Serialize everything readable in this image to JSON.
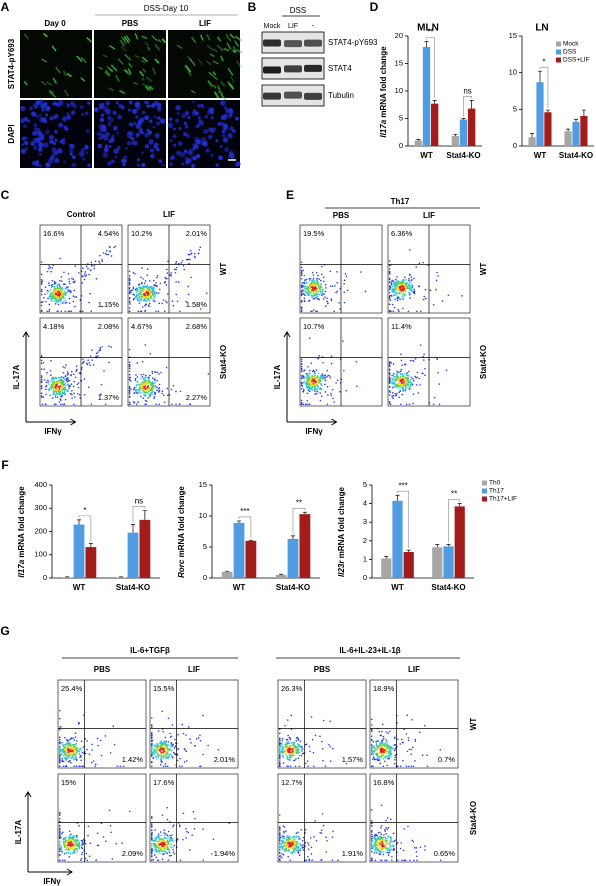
{
  "A": {
    "label": "A",
    "group_header": "DSS-Day 10",
    "columns": [
      "Day 0",
      "PBS",
      "LIF"
    ],
    "rows": [
      "STAT4-pY693",
      "DAPI"
    ]
  },
  "B": {
    "label": "B",
    "group_header": "DSS",
    "lanes": [
      "Mock",
      "LIF",
      "-"
    ],
    "blots": [
      "STAT4-pY693",
      "STAT4",
      "Tubulin"
    ]
  },
  "C": {
    "label": "C",
    "columns": [
      "Control",
      "LIF"
    ],
    "rows": [
      "WT",
      "Stat4-KO"
    ],
    "y_axis": "IL-17A",
    "x_axis": "IFNγ",
    "plots": [
      [
        {
          "tl": "16.6%",
          "tr": "4.54%",
          "br": "1.15%"
        },
        {
          "tl": "10.2%",
          "tr": "2.01%",
          "br": "1.58%"
        }
      ],
      [
        {
          "tl": "4.18%",
          "tr": "2.08%",
          "br": "1.37%"
        },
        {
          "tl": "4.67%",
          "tr": "2.68%",
          "br": "2.27%"
        }
      ]
    ]
  },
  "D": {
    "label": "D",
    "ylabel_gene": "Il17a",
    "ylabel_rest": " mRNA fold change",
    "categories": [
      "WT",
      "Stat4-KO"
    ],
    "series": [
      {
        "name": "Mock",
        "color": "#a6a6a6"
      },
      {
        "name": "DSS",
        "color": "#4f9de0"
      },
      {
        "name": "DSS+LIF",
        "color": "#a31c1c"
      }
    ],
    "charts": [
      {
        "type": "bar",
        "title": "MLN",
        "ylim": [
          0,
          20
        ],
        "yticks": [
          0,
          5,
          10,
          15,
          20
        ],
        "values": [
          [
            1,
            1.8
          ],
          [
            18,
            4.8
          ],
          [
            7.7,
            6.8
          ]
        ],
        "errors": [
          [
            0.2,
            0.3
          ],
          [
            1,
            0.2
          ],
          [
            0.6,
            1.5
          ]
        ],
        "annotations": [
          "**",
          "ns"
        ]
      },
      {
        "type": "bar",
        "title": "LN",
        "ylim": [
          0,
          15
        ],
        "yticks": [
          0,
          5,
          10,
          15
        ],
        "values": [
          [
            1.2,
            2
          ],
          [
            8.7,
            3.3
          ],
          [
            4.6,
            4.1
          ]
        ],
        "errors": [
          [
            0.5,
            0.3
          ],
          [
            1.5,
            0.3
          ],
          [
            0.3,
            0.8
          ]
        ],
        "annotations": [
          "*",
          null
        ]
      }
    ]
  },
  "E": {
    "label": "E",
    "group_header": "Th17",
    "columns": [
      "PBS",
      "LIF"
    ],
    "rows": [
      "WT",
      "Stat4-KO"
    ],
    "y_axis": "IL-17A",
    "x_axis": "IFNγ",
    "plots": [
      [
        {
          "tl": "19.5%"
        },
        {
          "tl": "6.36%"
        }
      ],
      [
        {
          "tl": "10.7%"
        },
        {
          "tl": "11.4%"
        }
      ]
    ]
  },
  "F": {
    "label": "F",
    "categories": [
      "WT",
      "Stat4-KO"
    ],
    "series": [
      {
        "name": "Th0",
        "color": "#a6a6a6"
      },
      {
        "name": "Th17",
        "color": "#4f9de0"
      },
      {
        "name": "Th17+LIF",
        "color": "#a31c1c"
      }
    ],
    "charts": [
      {
        "type": "bar",
        "ylabel_gene": "Il17a",
        "ylabel_rest": " mRNA fold change",
        "ylim": [
          0,
          400
        ],
        "yticks": [
          0,
          100,
          200,
          300,
          400
        ],
        "values": [
          [
            3,
            3
          ],
          [
            230,
            195
          ],
          [
            133,
            250
          ]
        ],
        "errors": [
          [
            2,
            2
          ],
          [
            20,
            35
          ],
          [
            15,
            40
          ]
        ],
        "annotations": [
          "*",
          "ns"
        ]
      },
      {
        "type": "bar",
        "ylabel_gene": "Rorc",
        "ylabel_rest": " mRNA fold change",
        "ylim": [
          0,
          15
        ],
        "yticks": [
          0,
          5,
          10,
          15
        ],
        "values": [
          [
            1,
            0.5
          ],
          [
            8.9,
            6.3
          ],
          [
            6,
            10.3
          ]
        ],
        "errors": [
          [
            0.1,
            0.1
          ],
          [
            0.3,
            0.5
          ],
          [
            0.1,
            0.3
          ]
        ],
        "annotations": [
          "***",
          "**"
        ]
      },
      {
        "type": "bar",
        "ylabel_gene": "Il23r",
        "ylabel_rest": " mRNA fold change",
        "ylim": [
          0,
          5
        ],
        "yticks": [
          0,
          1,
          2,
          3,
          4,
          5
        ],
        "values": [
          [
            1.05,
            1.65
          ],
          [
            4.15,
            1.7
          ],
          [
            1.4,
            3.85
          ]
        ],
        "errors": [
          [
            0.1,
            0.15
          ],
          [
            0.3,
            0.1
          ],
          [
            0.1,
            0.15
          ]
        ],
        "annotations": [
          "***",
          "**"
        ]
      }
    ]
  },
  "G": {
    "label": "G",
    "group_headers": [
      "IL-6+TGFβ",
      "IL-6+IL-23+IL-1β"
    ],
    "columns": [
      "PBS",
      "LIF",
      "PBS",
      "LIF"
    ],
    "rows": [
      "WT",
      "Stat4-KO"
    ],
    "y_axis": "IL-17A",
    "x_axis": "IFNγ",
    "plots": [
      [
        {
          "tl": "25.4%",
          "br": "1.42%"
        },
        {
          "tl": "15.5%",
          "br": "2.01%"
        },
        {
          "tl": "26.3%",
          "br": "1.57%"
        },
        {
          "tl": "18.9%",
          "br": "0.7%"
        }
      ],
      [
        {
          "tl": "15%",
          "br": "2.09%"
        },
        {
          "tl": "17.6%",
          "br": "1.94%"
        },
        {
          "tl": "12.7%",
          "br": "1.91%"
        },
        {
          "tl": "16.8%",
          "br": "0.65%"
        }
      ]
    ]
  }
}
